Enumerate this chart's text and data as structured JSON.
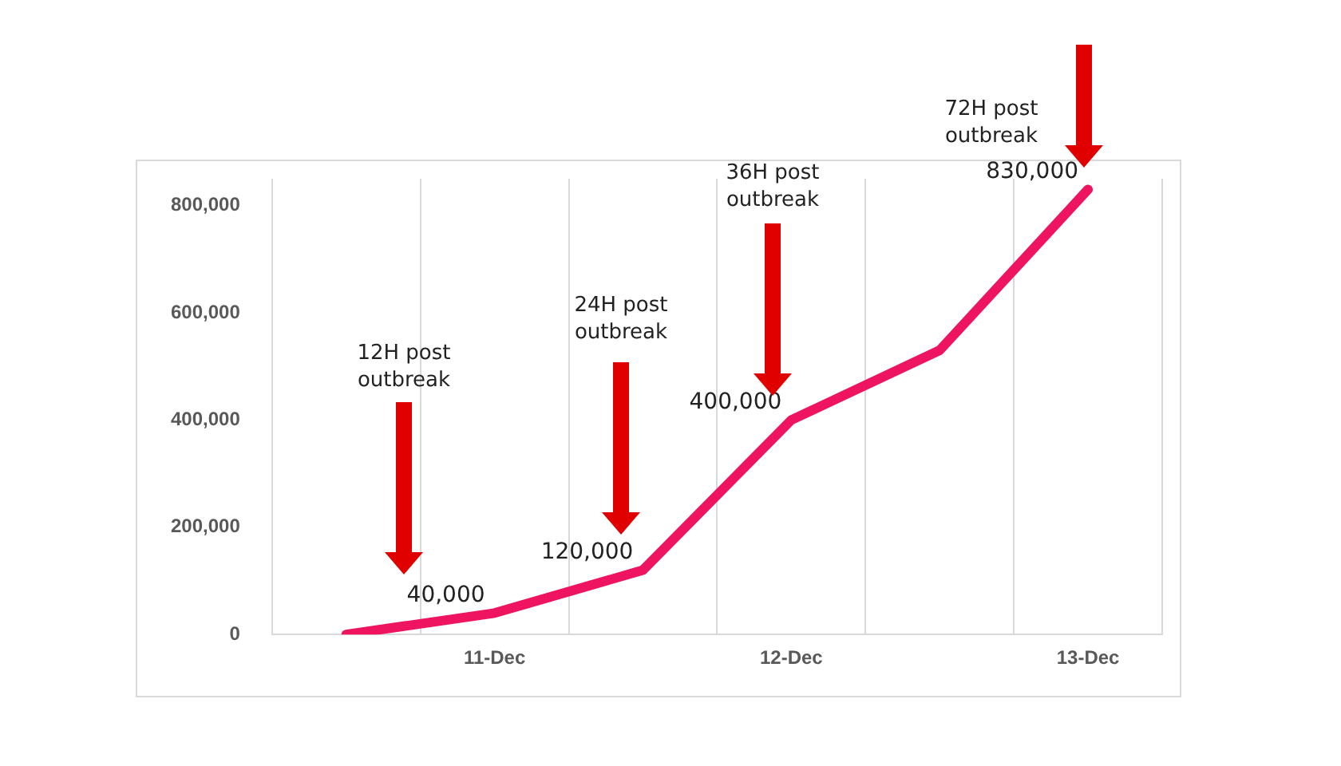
{
  "chart_data": {
    "type": "line",
    "categories": [
      null,
      "11-Dec",
      null,
      "12-Dec",
      null,
      "13-Dec"
    ],
    "series": [
      {
        "color": "#ee1460",
        "values": [
          0,
          40000,
          120000,
          400000,
          530000,
          830000
        ],
        "value_labels": [
          null,
          "40,000",
          "120,000",
          "400,000",
          null,
          "830,000"
        ]
      }
    ],
    "ylim": [
      0,
      850000
    ],
    "yticks": [
      {
        "value": 0,
        "label": "0"
      },
      {
        "value": 200000,
        "label": "200,000"
      },
      {
        "value": 400000,
        "label": "400,000"
      },
      {
        "value": 600000,
        "label": "600,000"
      },
      {
        "value": 800000,
        "label": "800,000"
      }
    ],
    "grid": "x",
    "marker": "none",
    "line_style": "solid",
    "annotations": [
      "12H post outbreak",
      "24H post outbreak",
      "36H post outbreak",
      "72H post outbreak"
    ]
  }
}
